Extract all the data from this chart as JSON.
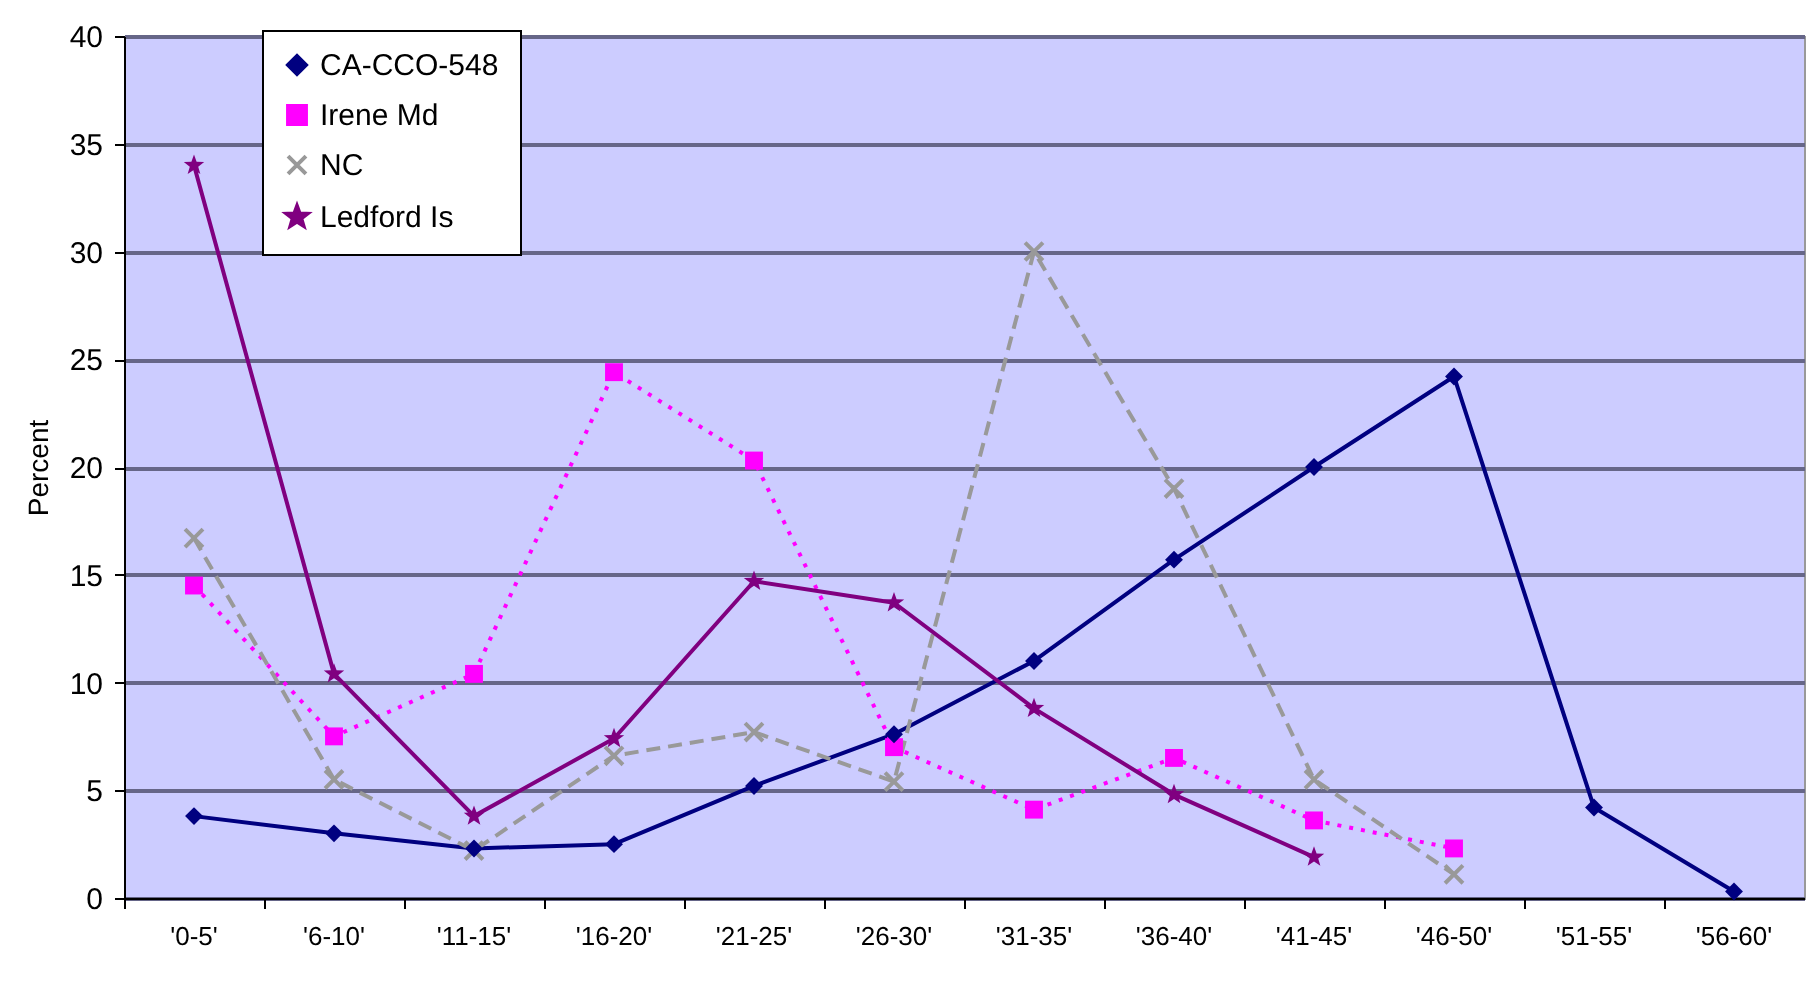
{
  "chart_data": {
    "type": "line",
    "ylabel": "Percent",
    "categories": [
      "'0-5'",
      "'6-10'",
      "'11-15'",
      "'16-20'",
      "'21-25'",
      "'26-30'",
      "'31-35'",
      "'36-40'",
      "'41-45'",
      "'46-50'",
      "'51-55'",
      "'56-60'"
    ],
    "series": [
      {
        "name": "CA-CCO-548",
        "color": "#000080",
        "marker": "diamond",
        "line_style": "solid",
        "values": [
          3.8,
          3.0,
          2.3,
          2.5,
          5.2,
          7.6,
          11.0,
          15.7,
          20.0,
          24.2,
          4.2,
          0.3
        ]
      },
      {
        "name": "Irene Md",
        "color": "#ff00ff",
        "marker": "square",
        "line_style": "dotted",
        "values": [
          14.5,
          7.5,
          10.4,
          24.4,
          20.3,
          7.0,
          4.1,
          6.5,
          3.6,
          2.3,
          null,
          null
        ]
      },
      {
        "name": "NC",
        "color": "#999999",
        "marker": "cross",
        "line_style": "dashed",
        "values": [
          16.7,
          5.5,
          2.2,
          6.6,
          7.7,
          5.4,
          30.0,
          19.0,
          5.5,
          1.1,
          null,
          null
        ]
      },
      {
        "name": "Ledford Is",
        "color": "#800080",
        "marker": "star",
        "line_style": "solid",
        "values": [
          34.0,
          10.4,
          3.8,
          7.4,
          14.7,
          13.7,
          8.8,
          4.8,
          1.9,
          null,
          null,
          null
        ]
      }
    ],
    "ylim": [
      0,
      40
    ],
    "yticks": [
      0,
      5,
      10,
      15,
      20,
      25,
      30,
      35,
      40
    ],
    "grid": "y",
    "legend": "top left"
  }
}
